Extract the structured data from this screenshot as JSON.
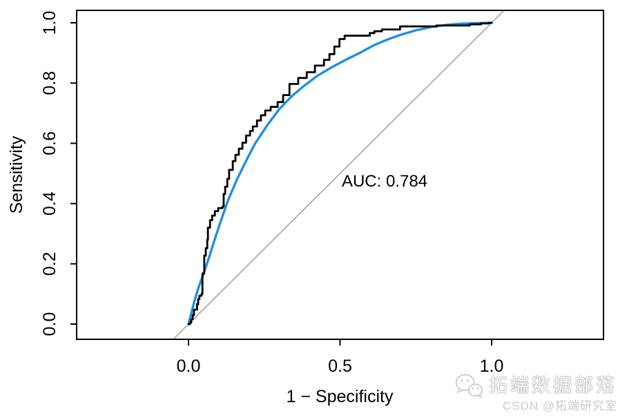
{
  "chart_data": {
    "type": "line",
    "title": "",
    "xlabel": "1 − Specificity",
    "ylabel": "Sensitivity",
    "xlim": [
      0,
      1
    ],
    "ylim": [
      0,
      1
    ],
    "grid": false,
    "legend_position": "none",
    "x_ticks": {
      "values": [
        0,
        0.5,
        1
      ],
      "labels": [
        "0.0",
        "0.5",
        "1.0"
      ]
    },
    "y_ticks": {
      "values": [
        0,
        0.2,
        0.4,
        0.6,
        0.8,
        1
      ],
      "labels": [
        "0.0",
        "0.2",
        "0.4",
        "0.6",
        "0.8",
        "1.0"
      ]
    },
    "annotation": {
      "text": "AUC: 0.784",
      "auc_value": 0.784,
      "x": 0.647,
      "y": 0.477
    },
    "series": [
      {
        "name": "empirical-roc",
        "style": "step",
        "color": "#000000",
        "line_width": 2.8,
        "points": [
          [
            0.0,
            0.0
          ],
          [
            0.005,
            0.005
          ],
          [
            0.009,
            0.016
          ],
          [
            0.014,
            0.03
          ],
          [
            0.018,
            0.048
          ],
          [
            0.025,
            0.048
          ],
          [
            0.028,
            0.066
          ],
          [
            0.032,
            0.083
          ],
          [
            0.036,
            0.094
          ],
          [
            0.043,
            0.1
          ],
          [
            0.046,
            0.135
          ],
          [
            0.046,
            0.168
          ],
          [
            0.052,
            0.185
          ],
          [
            0.052,
            0.227
          ],
          [
            0.057,
            0.252
          ],
          [
            0.062,
            0.28
          ],
          [
            0.064,
            0.32
          ],
          [
            0.071,
            0.345
          ],
          [
            0.078,
            0.36
          ],
          [
            0.087,
            0.375
          ],
          [
            0.098,
            0.385
          ],
          [
            0.112,
            0.39
          ],
          [
            0.116,
            0.432
          ],
          [
            0.121,
            0.456
          ],
          [
            0.128,
            0.482
          ],
          [
            0.134,
            0.512
          ],
          [
            0.146,
            0.541
          ],
          [
            0.155,
            0.562
          ],
          [
            0.166,
            0.582
          ],
          [
            0.178,
            0.602
          ],
          [
            0.19,
            0.626
          ],
          [
            0.203,
            0.641
          ],
          [
            0.212,
            0.656
          ],
          [
            0.226,
            0.676
          ],
          [
            0.239,
            0.693
          ],
          [
            0.253,
            0.709
          ],
          [
            0.271,
            0.721
          ],
          [
            0.294,
            0.737
          ],
          [
            0.312,
            0.76
          ],
          [
            0.333,
            0.797
          ],
          [
            0.362,
            0.817
          ],
          [
            0.39,
            0.836
          ],
          [
            0.417,
            0.858
          ],
          [
            0.447,
            0.877
          ],
          [
            0.465,
            0.896
          ],
          [
            0.481,
            0.921
          ],
          [
            0.498,
            0.946
          ],
          [
            0.515,
            0.957
          ],
          [
            0.583,
            0.957
          ],
          [
            0.598,
            0.966
          ],
          [
            0.613,
            0.972
          ],
          [
            0.638,
            0.978
          ],
          [
            0.675,
            0.978
          ],
          [
            0.698,
            0.988
          ],
          [
            0.783,
            0.988
          ],
          [
            0.818,
            0.991
          ],
          [
            0.897,
            0.991
          ],
          [
            0.928,
            0.995
          ],
          [
            0.965,
            0.998
          ],
          [
            0.99,
            1.0
          ],
          [
            1.0,
            1.0
          ]
        ]
      },
      {
        "name": "smoothed-roc",
        "style": "smooth",
        "color": "#1E8EE8",
        "line_width": 3.4,
        "points": [
          [
            0.0,
            0.0
          ],
          [
            0.01,
            0.04
          ],
          [
            0.02,
            0.078
          ],
          [
            0.032,
            0.118
          ],
          [
            0.05,
            0.168
          ],
          [
            0.07,
            0.228
          ],
          [
            0.09,
            0.292
          ],
          [
            0.11,
            0.352
          ],
          [
            0.13,
            0.41
          ],
          [
            0.16,
            0.48
          ],
          [
            0.19,
            0.542
          ],
          [
            0.22,
            0.6
          ],
          [
            0.26,
            0.66
          ],
          [
            0.3,
            0.714
          ],
          [
            0.34,
            0.756
          ],
          [
            0.38,
            0.79
          ],
          [
            0.425,
            0.824
          ],
          [
            0.47,
            0.851
          ],
          [
            0.52,
            0.878
          ],
          [
            0.565,
            0.9
          ],
          [
            0.61,
            0.925
          ],
          [
            0.655,
            0.944
          ],
          [
            0.7,
            0.96
          ],
          [
            0.75,
            0.975
          ],
          [
            0.8,
            0.986
          ],
          [
            0.85,
            0.993
          ],
          [
            0.9,
            0.997
          ],
          [
            0.95,
            0.999
          ],
          [
            1.0,
            1.0
          ]
        ]
      },
      {
        "name": "chance-diagonal",
        "style": "straight",
        "color": "#ACACAC",
        "line_width": 1.8,
        "points": [
          [
            -0.06,
            -0.06
          ],
          [
            1.05,
            1.05
          ]
        ]
      }
    ]
  },
  "watermark": {
    "line1": "拓端数据部落",
    "line2": "CSDN @拓端研究室",
    "icon": "wechat-chat-bubbles-icon",
    "color": "#C9C9C9"
  }
}
